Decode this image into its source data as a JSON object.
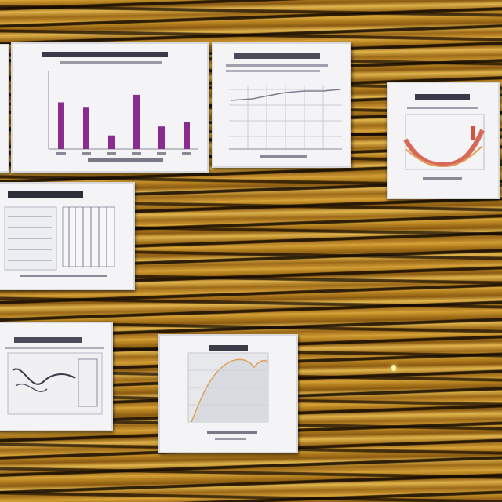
{
  "scene": {
    "background": "wood-panel",
    "colors": {
      "wood_light": "#d9a53a",
      "wood_dark": "#2a1804",
      "paper": "#f4f4f6",
      "bar_purple": "#8a2c8f",
      "chart_red": "#d2503c",
      "chart_orange": "#e0a15a"
    }
  },
  "cards": [
    {
      "chart": "bar-chart",
      "bars": [
        0.62,
        0.55,
        0.18,
        0.72,
        0.3,
        0.36
      ]
    },
    {
      "chart": "line-chart"
    },
    {
      "chart": "curve-chart"
    },
    {
      "chart": "table-chart"
    },
    {
      "chart": "diagram-chart"
    },
    {
      "chart": "area-chart"
    }
  ]
}
